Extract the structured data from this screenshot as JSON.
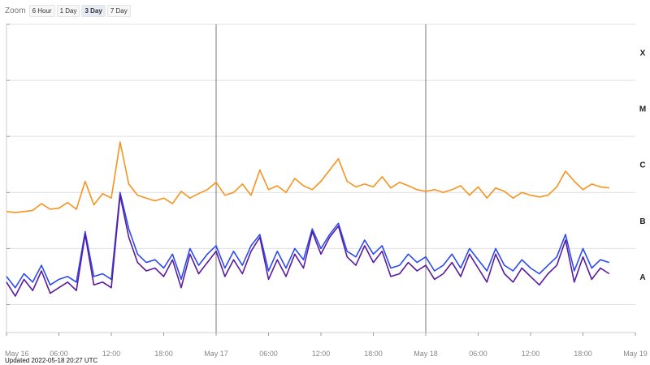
{
  "zoom": {
    "label": "Zoom",
    "buttons": [
      "6 Hour",
      "1 Day",
      "3 Day",
      "7 Day"
    ],
    "active": "3 Day"
  },
  "updated_text": "Updated 2022-05-18 20:27 UTC",
  "colors": {
    "upper": "#f7931e",
    "lower_a": "#2b4bf0",
    "lower_b": "#5b1a9e",
    "grid": "#e0e0e0",
    "day_line": "#777777"
  },
  "chart_data": {
    "type": "line",
    "title": "",
    "xlabel": "",
    "ylabel": "",
    "x_ticks": [
      "May 16",
      "06:00",
      "12:00",
      "18:00",
      "May 17",
      "06:00",
      "12:00",
      "18:00",
      "May 18",
      "06:00",
      "12:00",
      "18:00",
      "May 19"
    ],
    "x_range_hours": [
      0,
      72
    ],
    "y_scale": "log",
    "y_class_labels": [
      "A",
      "B",
      "C",
      "M",
      "X"
    ],
    "y_range_log10": [
      -8.5,
      -3
    ],
    "grid": true,
    "series": [
      {
        "name": "",
        "color": "#f7931e",
        "x_hours": [
          0,
          1,
          2,
          3,
          4,
          5,
          6,
          7,
          8,
          9,
          10,
          11,
          12,
          13,
          14,
          15,
          16,
          17,
          18,
          19,
          20,
          21,
          22,
          23,
          24,
          25,
          26,
          27,
          28,
          29,
          30,
          31,
          32,
          33,
          34,
          35,
          36,
          37,
          38,
          39,
          40,
          41,
          42,
          43,
          44,
          45,
          46,
          47,
          48,
          49,
          50,
          51,
          52,
          53,
          54,
          55,
          56,
          57,
          58,
          59,
          60,
          61,
          62,
          63,
          64,
          65,
          66,
          67,
          68,
          69
        ],
        "log10_flux": [
          -6.34,
          -6.36,
          -6.34,
          -6.32,
          -6.2,
          -6.3,
          -6.28,
          -6.18,
          -6.3,
          -5.8,
          -6.22,
          -6.02,
          -6.1,
          -5.1,
          -5.85,
          -6.05,
          -6.1,
          -6.15,
          -6.1,
          -6.2,
          -5.98,
          -6.1,
          -6.02,
          -5.95,
          -5.82,
          -6.05,
          -6.0,
          -5.85,
          -6.05,
          -5.6,
          -5.95,
          -5.88,
          -6.0,
          -5.75,
          -5.88,
          -5.95,
          -5.8,
          -5.6,
          -5.4,
          -5.8,
          -5.9,
          -5.85,
          -5.9,
          -5.72,
          -5.92,
          -5.82,
          -5.88,
          -5.95,
          -5.98,
          -5.95,
          -6.0,
          -5.95,
          -5.88,
          -6.05,
          -5.9,
          -6.1,
          -5.92,
          -5.98,
          -6.1,
          -6.0,
          -6.05,
          -6.08,
          -6.05,
          -5.9,
          -5.62,
          -5.8,
          -5.95,
          -5.85,
          -5.9,
          -5.92
        ]
      },
      {
        "name": "",
        "color": "#2b4bf0",
        "x_hours": [
          0,
          1,
          2,
          3,
          4,
          5,
          6,
          7,
          8,
          9,
          10,
          11,
          12,
          13,
          14,
          15,
          16,
          17,
          18,
          19,
          20,
          21,
          22,
          23,
          24,
          25,
          26,
          27,
          28,
          29,
          30,
          31,
          32,
          33,
          34,
          35,
          36,
          37,
          38,
          39,
          40,
          41,
          42,
          43,
          44,
          45,
          46,
          47,
          48,
          49,
          50,
          51,
          52,
          53,
          54,
          55,
          56,
          57,
          58,
          59,
          60,
          61,
          62,
          63,
          64,
          65,
          66,
          67,
          68,
          69
        ],
        "log10_flux": [
          -7.5,
          -7.7,
          -7.45,
          -7.6,
          -7.3,
          -7.65,
          -7.55,
          -7.5,
          -7.6,
          -6.7,
          -7.5,
          -7.45,
          -7.55,
          -6.0,
          -6.65,
          -7.1,
          -7.25,
          -7.2,
          -7.35,
          -7.1,
          -7.55,
          -7.0,
          -7.3,
          -7.1,
          -6.95,
          -7.35,
          -7.05,
          -7.3,
          -6.95,
          -6.75,
          -7.4,
          -7.05,
          -7.35,
          -7.0,
          -7.2,
          -6.65,
          -7.0,
          -6.75,
          -6.55,
          -7.05,
          -7.15,
          -6.85,
          -7.1,
          -6.95,
          -7.35,
          -7.3,
          -7.1,
          -7.25,
          -7.15,
          -7.4,
          -7.3,
          -7.1,
          -7.35,
          -7.0,
          -7.2,
          -7.4,
          -7.0,
          -7.3,
          -7.4,
          -7.2,
          -7.35,
          -7.45,
          -7.3,
          -7.15,
          -6.75,
          -7.4,
          -7.0,
          -7.35,
          -7.2,
          -7.25
        ]
      },
      {
        "name": "",
        "color": "#5b1a9e",
        "x_hours": [
          0,
          1,
          2,
          3,
          4,
          5,
          6,
          7,
          8,
          9,
          10,
          11,
          12,
          13,
          14,
          15,
          16,
          17,
          18,
          19,
          20,
          21,
          22,
          23,
          24,
          25,
          26,
          27,
          28,
          29,
          30,
          31,
          32,
          33,
          34,
          35,
          36,
          37,
          38,
          39,
          40,
          41,
          42,
          43,
          44,
          45,
          46,
          47,
          48,
          49,
          50,
          51,
          52,
          53,
          54,
          55,
          56,
          57,
          58,
          59,
          60,
          61,
          62,
          63,
          64,
          65,
          66,
          67,
          68,
          69
        ],
        "log10_flux": [
          -7.6,
          -7.85,
          -7.55,
          -7.75,
          -7.4,
          -7.8,
          -7.7,
          -7.6,
          -7.75,
          -6.75,
          -7.65,
          -7.6,
          -7.7,
          -6.05,
          -6.8,
          -7.25,
          -7.4,
          -7.35,
          -7.5,
          -7.2,
          -7.7,
          -7.1,
          -7.45,
          -7.25,
          -7.05,
          -7.5,
          -7.2,
          -7.45,
          -7.05,
          -6.8,
          -7.55,
          -7.2,
          -7.5,
          -7.1,
          -7.35,
          -6.7,
          -7.1,
          -6.8,
          -6.6,
          -7.15,
          -7.3,
          -6.95,
          -7.25,
          -7.05,
          -7.5,
          -7.45,
          -7.25,
          -7.4,
          -7.3,
          -7.55,
          -7.45,
          -7.25,
          -7.5,
          -7.1,
          -7.35,
          -7.6,
          -7.1,
          -7.45,
          -7.6,
          -7.35,
          -7.5,
          -7.65,
          -7.45,
          -7.3,
          -6.85,
          -7.6,
          -7.15,
          -7.55,
          -7.35,
          -7.45
        ]
      }
    ]
  }
}
